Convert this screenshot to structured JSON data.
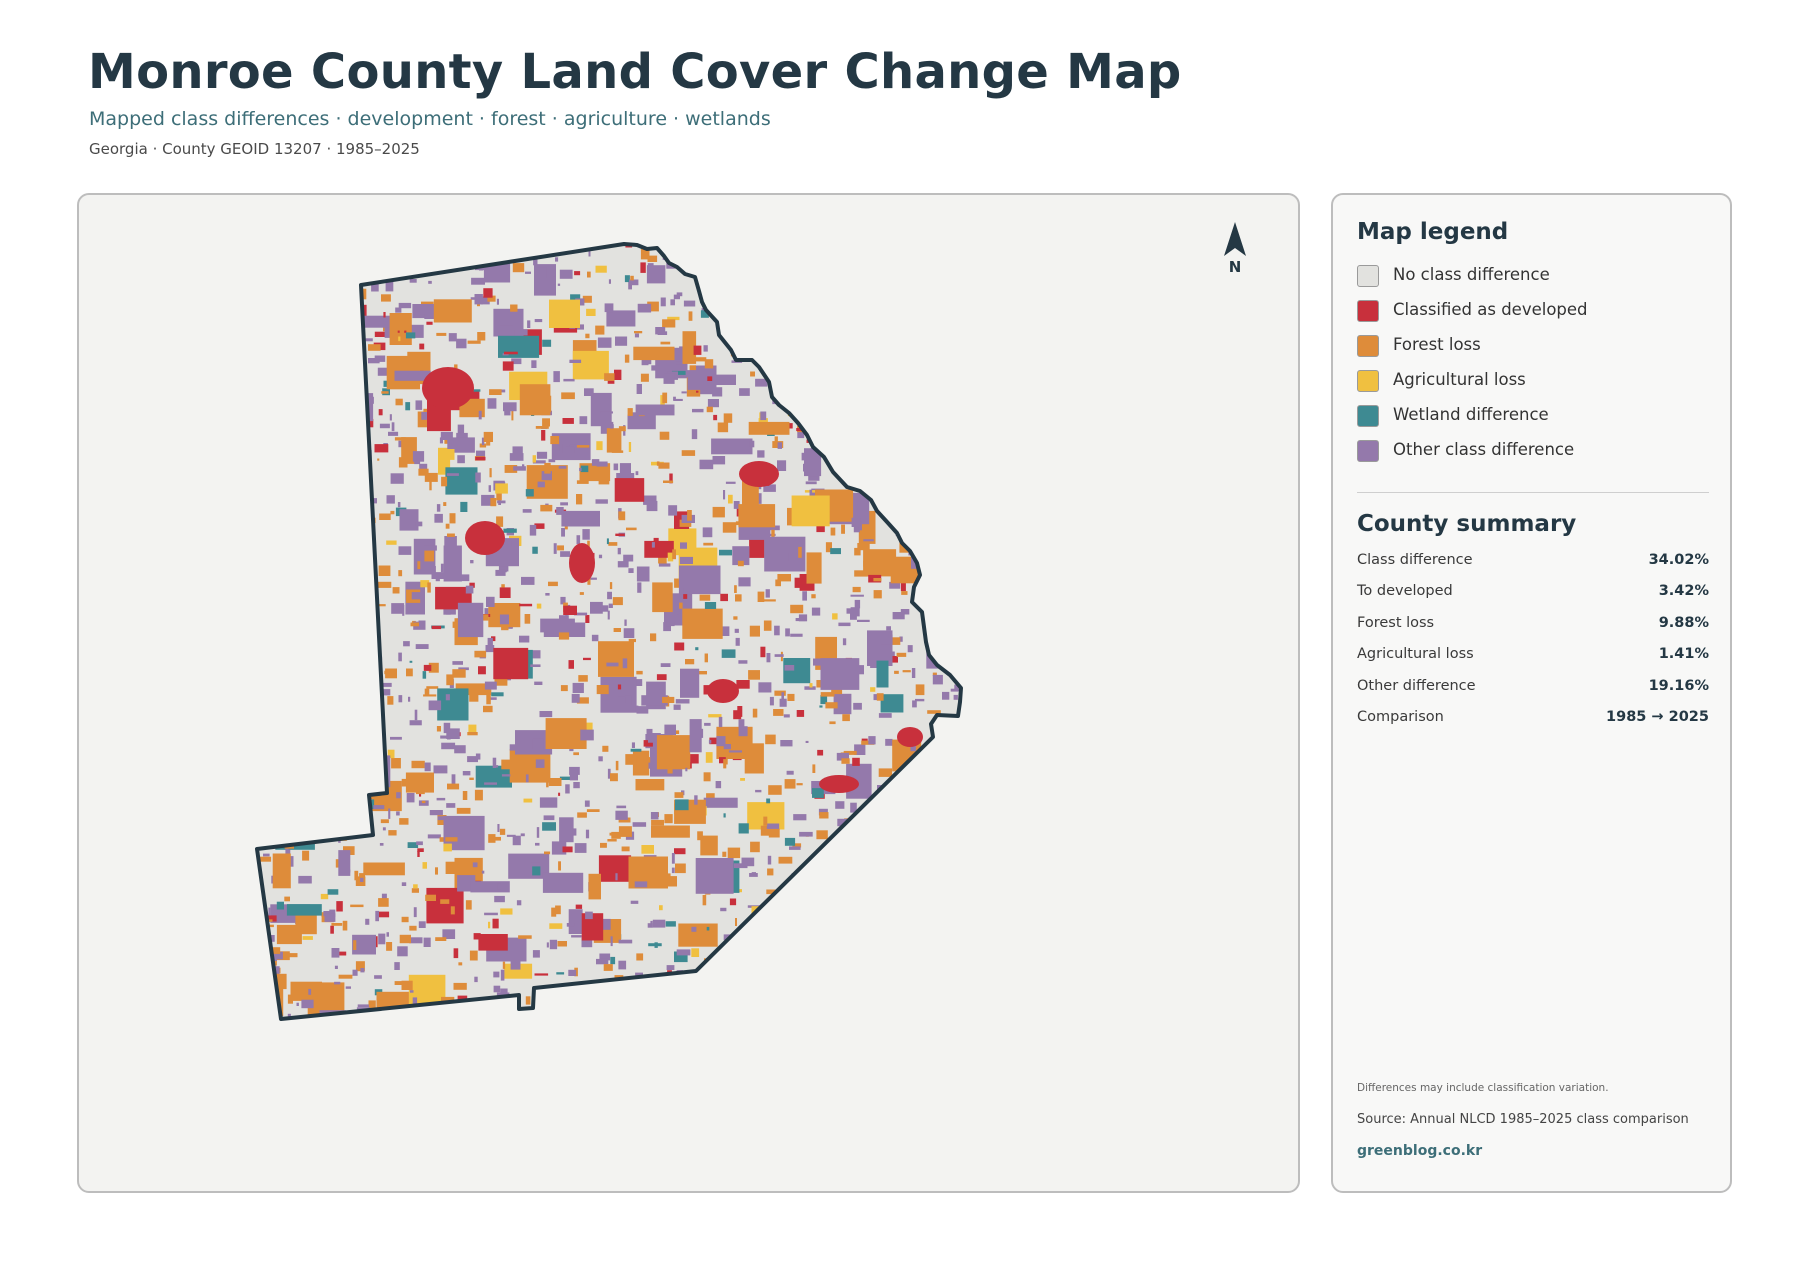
{
  "header": {
    "title": "Monroe County Land Cover Change Map",
    "subtitle": "Mapped class differences · development · forest · agriculture · wetlands",
    "meta": "Georgia · County GEOID 13207 · 1985–2025"
  },
  "map": {
    "north_label": "N",
    "outline_color": "#243844",
    "background_color": "#f3f3f1"
  },
  "legend": {
    "title": "Map legend",
    "items": [
      {
        "label": "No class difference",
        "color": "#e2e2df"
      },
      {
        "label": "Classified as developed",
        "color": "#c8303c"
      },
      {
        "label": "Forest loss",
        "color": "#de8c3a"
      },
      {
        "label": "Agricultural loss",
        "color": "#f0c040"
      },
      {
        "label": "Wetland difference",
        "color": "#3e8a92"
      },
      {
        "label": "Other class difference",
        "color": "#9479ab"
      }
    ]
  },
  "summary": {
    "title": "County summary",
    "rows": [
      {
        "label": "Class difference",
        "value": "34.02%"
      },
      {
        "label": "To developed",
        "value": "3.42%"
      },
      {
        "label": "Forest loss",
        "value": "9.88%"
      },
      {
        "label": "Agricultural loss",
        "value": "1.41%"
      },
      {
        "label": "Other difference",
        "value": "19.16%"
      },
      {
        "label": "Comparison",
        "value": "1985 → 2025"
      }
    ]
  },
  "footer": {
    "note": "Differences may include classification variation.",
    "source": "Source: Annual NLCD 1985–2025 class comparison",
    "site": "greenblog.co.kr"
  }
}
